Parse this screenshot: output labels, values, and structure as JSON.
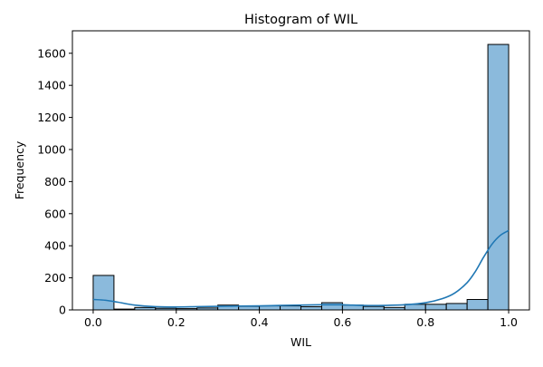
{
  "chart_data": {
    "type": "bar",
    "title": "Histogram of WIL",
    "xlabel": "WIL",
    "ylabel": "Frequency",
    "xlim": [
      -0.05,
      1.05
    ],
    "ylim": [
      0,
      1740
    ],
    "x_ticks": [
      0.0,
      0.2,
      0.4,
      0.6,
      0.8,
      1.0
    ],
    "x_tick_labels": [
      "0.0",
      "0.2",
      "0.4",
      "0.6",
      "0.8",
      "1.0"
    ],
    "y_ticks": [
      0,
      200,
      400,
      600,
      800,
      1000,
      1200,
      1400,
      1600
    ],
    "y_tick_labels": [
      "0",
      "200",
      "400",
      "600",
      "800",
      "1000",
      "1200",
      "1400",
      "1600"
    ],
    "bins": {
      "edges": [
        0.0,
        0.05,
        0.1,
        0.15,
        0.2,
        0.25,
        0.3,
        0.35,
        0.4,
        0.45,
        0.5,
        0.55,
        0.6,
        0.65,
        0.7,
        0.75,
        0.8,
        0.85,
        0.9,
        0.95,
        1.0
      ],
      "counts": [
        215,
        5,
        15,
        10,
        8,
        12,
        30,
        22,
        25,
        25,
        20,
        45,
        30,
        22,
        15,
        35,
        35,
        40,
        65,
        1655
      ]
    },
    "kde": {
      "x": [
        0.0,
        0.03,
        0.06,
        0.1,
        0.15,
        0.2,
        0.25,
        0.3,
        0.35,
        0.4,
        0.45,
        0.5,
        0.55,
        0.6,
        0.65,
        0.7,
        0.75,
        0.8,
        0.84,
        0.87,
        0.9,
        0.92,
        0.94,
        0.96,
        0.98,
        1.0
      ],
      "y": [
        65,
        60,
        48,
        30,
        20,
        18,
        20,
        22,
        24,
        25,
        28,
        30,
        32,
        32,
        28,
        28,
        32,
        45,
        70,
        105,
        170,
        240,
        330,
        410,
        465,
        495
      ]
    },
    "colors": {
      "bar_fill": "#8bbadc",
      "bar_edge": "#000000",
      "kde_line": "#1f77b4"
    },
    "grid": false,
    "legend": "none"
  }
}
